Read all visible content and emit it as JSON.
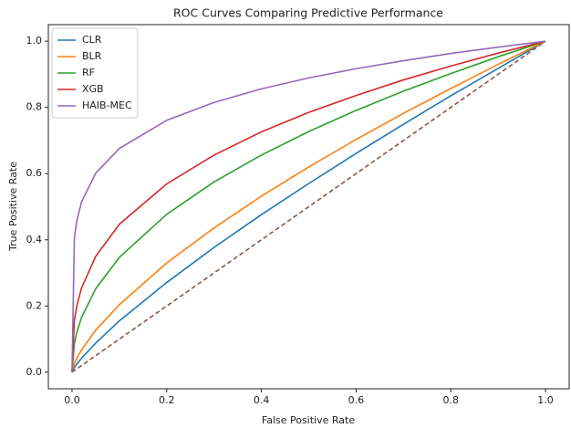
{
  "chart_data": {
    "type": "line",
    "title": "ROC Curves Comparing Predictive Performance",
    "x_label": "False Positive Rate",
    "y_label": "True Positive Rate",
    "x": [
      0,
      0.005,
      0.01,
      0.02,
      0.05,
      0.1,
      0.2,
      0.3,
      0.4,
      0.5,
      0.6,
      0.7,
      0.8,
      0.9,
      1.0
    ],
    "series": [
      {
        "name": "CLR",
        "color": "#1f77b4",
        "values": [
          0,
          0.014,
          0.024,
          0.042,
          0.088,
          0.155,
          0.271,
          0.377,
          0.476,
          0.57,
          0.661,
          0.749,
          0.835,
          0.918,
          1.0
        ]
      },
      {
        "name": "BLR",
        "color": "#ff7f0e",
        "values": [
          0,
          0.026,
          0.042,
          0.067,
          0.127,
          0.204,
          0.33,
          0.436,
          0.532,
          0.62,
          0.703,
          0.782,
          0.857,
          0.93,
          1.0
        ]
      },
      {
        "name": "RF",
        "color": "#2ca02c",
        "values": [
          0,
          0.087,
          0.12,
          0.165,
          0.252,
          0.347,
          0.477,
          0.575,
          0.656,
          0.727,
          0.791,
          0.849,
          0.902,
          0.953,
          1.0
        ]
      },
      {
        "name": "XGB",
        "color": "#d62728",
        "values": [
          0,
          0.157,
          0.2,
          0.254,
          0.35,
          0.447,
          0.569,
          0.656,
          0.726,
          0.785,
          0.836,
          0.883,
          0.925,
          0.964,
          1.0
        ]
      },
      {
        "name": "HAIB-MEC",
        "color": "#9467bd",
        "values": [
          0,
          0.406,
          0.457,
          0.514,
          0.601,
          0.676,
          0.761,
          0.815,
          0.856,
          0.889,
          0.917,
          0.941,
          0.963,
          0.982,
          1.0
        ]
      }
    ],
    "reference_line": {
      "x": [
        0,
        1
      ],
      "values": [
        0,
        1
      ],
      "color": "#8c564b",
      "dashed": true
    },
    "xlim": [
      -0.05,
      1.05
    ],
    "ylim": [
      -0.05,
      1.05
    ],
    "xticks": [
      {
        "value": 0,
        "label": "0.0"
      },
      0.2,
      0.4,
      0.6,
      0.8,
      {
        "value": 1,
        "label": "1.0"
      }
    ],
    "yticks": [
      {
        "value": 0,
        "label": "0.0"
      },
      0.2,
      0.4,
      0.6,
      0.8,
      {
        "value": 1,
        "label": "1.0"
      }
    ],
    "grid": false,
    "legend": "upper left"
  }
}
